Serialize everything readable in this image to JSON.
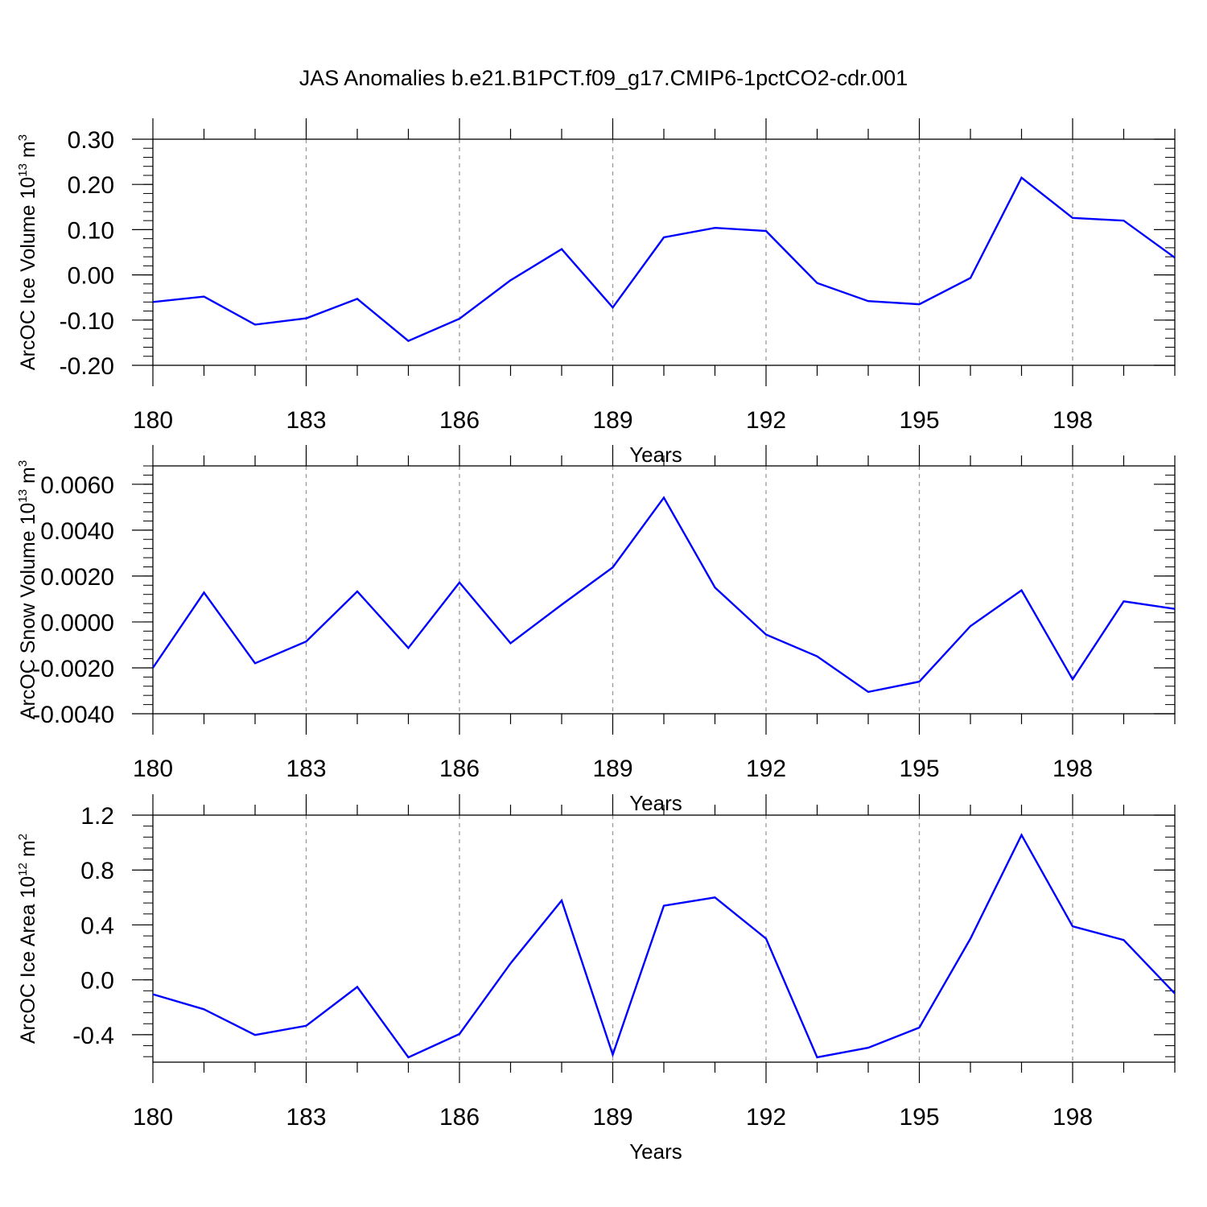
{
  "chart_data": {
    "title": "JAS Anomalies b.e21.B1PCT.f09_g17.CMIP6-1pctCO2-cdr.001",
    "line_color": "#0000ff",
    "panels": [
      {
        "type": "line",
        "xlabel": "Years",
        "ylabel": {
          "text": "ArcOC Ice Volume 10",
          "sup": "13",
          "unit": " m",
          "unit_sup": "3"
        },
        "x": [
          180,
          181,
          182,
          183,
          184,
          185,
          186,
          187,
          188,
          189,
          190,
          191,
          192,
          193,
          194,
          195,
          196,
          197,
          198,
          199,
          200
        ],
        "xlim": [
          180,
          200
        ],
        "xticks": [
          180,
          183,
          186,
          189,
          192,
          195,
          198
        ],
        "xtick_labels": [
          "180",
          "183",
          "186",
          "189",
          "192",
          "195",
          "198"
        ],
        "ylim": [
          -0.2,
          0.3
        ],
        "yticks": [
          -0.2,
          -0.1,
          0.0,
          0.1,
          0.2,
          0.3
        ],
        "ytick_labels": [
          "-0.20",
          "-0.10",
          "0.00",
          "0.10",
          "0.20",
          "0.30"
        ],
        "minor_step": 0.02,
        "values": [
          -0.06,
          -0.048,
          -0.11,
          -0.096,
          -0.053,
          -0.146,
          -0.097,
          -0.012,
          0.057,
          -0.072,
          0.083,
          0.104,
          0.097,
          -0.018,
          -0.058,
          -0.065,
          -0.007,
          0.215,
          0.126,
          0.12,
          0.038
        ]
      },
      {
        "type": "line",
        "xlabel": "Years",
        "ylabel": {
          "text": "ArcOC Snow Volume 10",
          "sup": "13",
          "unit": " m",
          "unit_sup": "3"
        },
        "x": [
          180,
          181,
          182,
          183,
          184,
          185,
          186,
          187,
          188,
          189,
          190,
          191,
          192,
          193,
          194,
          195,
          196,
          197,
          198,
          199,
          200
        ],
        "xlim": [
          180,
          200
        ],
        "xticks": [
          180,
          183,
          186,
          189,
          192,
          195,
          198
        ],
        "xtick_labels": [
          "180",
          "183",
          "186",
          "189",
          "192",
          "195",
          "198"
        ],
        "ylim": [
          -0.004,
          0.0068
        ],
        "yticks": [
          -0.004,
          -0.002,
          0.0,
          0.002,
          0.004,
          0.006
        ],
        "ytick_labels": [
          "-0.0040",
          "-0.0020",
          "0.0000",
          "0.0020",
          "0.0040",
          "0.0060"
        ],
        "minor_step": 0.0004,
        "values": [
          -0.002,
          0.00128,
          -0.0018,
          -0.00085,
          0.00133,
          -0.00113,
          0.00172,
          -0.00093,
          0.00075,
          0.00238,
          0.00542,
          0.0015,
          -0.00055,
          -0.0015,
          -0.00305,
          -0.0026,
          -0.00018,
          0.00138,
          -0.0025,
          0.0009,
          0.00057
        ]
      },
      {
        "type": "line",
        "xlabel": "Years",
        "ylabel": {
          "text": "ArcOC Ice Area 10",
          "sup": "12",
          "unit": " m",
          "unit_sup": "2"
        },
        "x": [
          180,
          181,
          182,
          183,
          184,
          185,
          186,
          187,
          188,
          189,
          190,
          191,
          192,
          193,
          194,
          195,
          196,
          197,
          198,
          199,
          200
        ],
        "xlim": [
          180,
          200
        ],
        "xticks": [
          180,
          183,
          186,
          189,
          192,
          195,
          198
        ],
        "xtick_labels": [
          "180",
          "183",
          "186",
          "189",
          "192",
          "195",
          "198"
        ],
        "ylim": [
          -0.6,
          1.2
        ],
        "yticks": [
          -0.4,
          0.0,
          0.4,
          0.8,
          1.2
        ],
        "ytick_labels": [
          "-0.4",
          "0.0",
          "0.4",
          "0.8",
          "1.2"
        ],
        "minor_step": 0.08,
        "values": [
          -0.105,
          -0.215,
          -0.402,
          -0.335,
          -0.052,
          -0.565,
          -0.395,
          0.12,
          0.578,
          -0.545,
          0.54,
          0.6,
          0.3,
          -0.565,
          -0.495,
          -0.348,
          0.3,
          1.055,
          0.39,
          0.29,
          -0.1
        ]
      }
    ]
  }
}
